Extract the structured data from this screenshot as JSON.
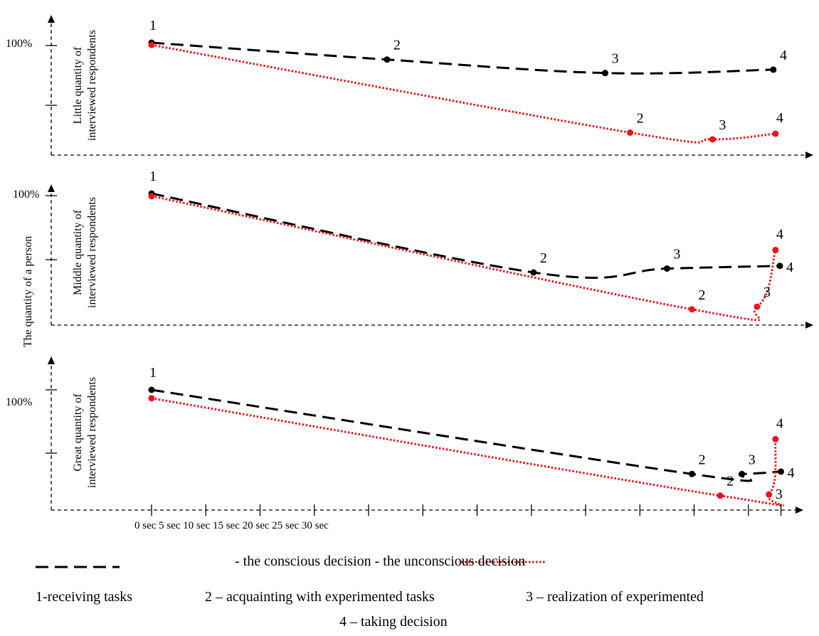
{
  "y_axis_title": "The quantity of a person",
  "panels": [
    {
      "label_line1": "Little quantity of",
      "label_line2": "interviewed respondents",
      "percent_label": "100%",
      "conscious_points": [
        {
          "label": "1",
          "x": 0,
          "y": 100
        },
        {
          "label": "2",
          "x": 21.7,
          "y": 85
        },
        {
          "label": "3",
          "x": 41.8,
          "y": 73
        },
        {
          "label": "4",
          "x": 57.3,
          "y": 76
        }
      ],
      "unconscious_points": [
        {
          "label": "",
          "x": 0,
          "y": 98
        },
        {
          "label": "2",
          "x": 44.1,
          "y": 20
        },
        {
          "label": "3",
          "x": 51.7,
          "y": 14
        },
        {
          "label": "4",
          "x": 57.5,
          "y": 19
        }
      ]
    },
    {
      "label_line1": "Middle quantity of",
      "label_line2": "interviewed respondents",
      "percent_label": "100%",
      "conscious_points": [
        {
          "label": "1",
          "x": 0,
          "y": 100
        },
        {
          "label": "2",
          "x": 35.2,
          "y": 40
        },
        {
          "label": "3",
          "x": 47.5,
          "y": 43
        },
        {
          "label": "4",
          "x": 57.9,
          "y": 45
        }
      ],
      "unconscious_points": [
        {
          "label": "",
          "x": 0,
          "y": 98
        },
        {
          "label": "2",
          "x": 49.8,
          "y": 12
        },
        {
          "label": "3",
          "x": 55.8,
          "y": 14
        },
        {
          "label": "4",
          "x": 57.5,
          "y": 57
        }
      ]
    },
    {
      "label_line1": "Great quantity of",
      "label_line2": "interviewed respondents",
      "percent_label": "100%",
      "conscious_points": [
        {
          "label": "1",
          "x": 0,
          "y": 100
        },
        {
          "label": "2",
          "x": 49.8,
          "y": 30
        },
        {
          "label": "3",
          "x": 54.4,
          "y": 30
        },
        {
          "label": "4",
          "x": 58.0,
          "y": 32
        }
      ],
      "unconscious_points": [
        {
          "label": "",
          "x": 0,
          "y": 93
        },
        {
          "label": "2",
          "x": 52.4,
          "y": 12
        },
        {
          "label": "3",
          "x": 56.9,
          "y": 13
        },
        {
          "label": "4",
          "x": 57.5,
          "y": 59
        }
      ]
    }
  ],
  "x_tick_labels": "0 sec 5 sec 10 sec 15 sec 20 sec 25 sec 30 sec",
  "x_tick_values": [
    0,
    5,
    10,
    15,
    20,
    25,
    30,
    35,
    40,
    45,
    50,
    55,
    58
  ],
  "legend": {
    "text": "- the conscious decision - the unconscious decision",
    "stages": {
      "s1": "1-receiving tasks",
      "s2": "2 – acquainting with experimented tasks",
      "s3": "3 – realization of experimented",
      "s4": "4 – taking decision"
    }
  },
  "colors": {
    "conscious": "#000000",
    "unconscious": "#e8141b"
  }
}
